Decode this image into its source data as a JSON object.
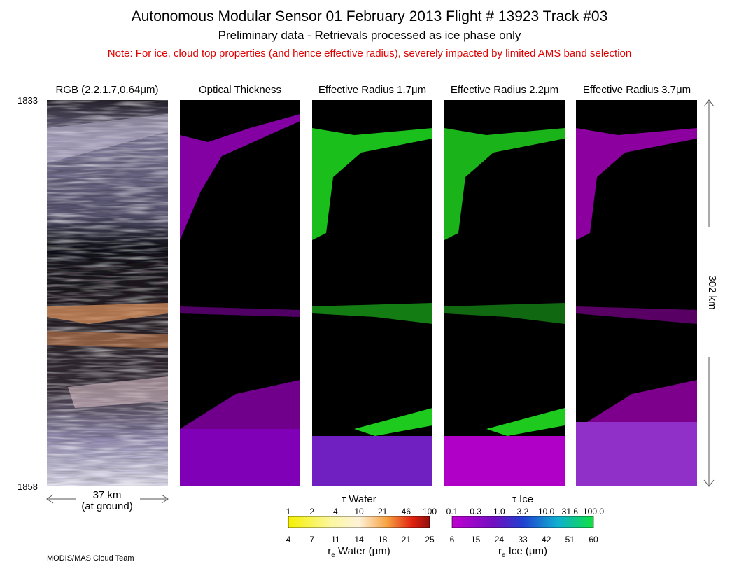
{
  "header": {
    "title": "Autonomous Modular Sensor  01 February 2013  Flight # 13923 Track #03",
    "subtitle": "Preliminary data - Retrievals processed as ice phase only",
    "note": "Note: For ice, cloud top properties (and hence effective radius), severely impacted by limited AMS band selection"
  },
  "panels": [
    {
      "title": "RGB (2.2,1.7,0.64μm)"
    },
    {
      "title": "Optical Thickness"
    },
    {
      "title": "Effective Radius 1.7μm"
    },
    {
      "title": "Effective Radius 2.2μm"
    },
    {
      "title": "Effective Radius 3.7μm"
    }
  ],
  "time_axis": {
    "start": "1833",
    "end": "1858"
  },
  "scale": {
    "width": "37 km",
    "width_note": "(at ground)",
    "length": "302 km"
  },
  "colorbars": {
    "water": {
      "top_label": "τ Water",
      "top_ticks": [
        "1",
        "2",
        "4",
        "10",
        "21",
        "46",
        "100"
      ],
      "bottom_ticks": [
        "4",
        "7",
        "11",
        "14",
        "18",
        "21",
        "25"
      ],
      "bottom_label": {
        "symbol": "r",
        "subscript": "e",
        "text": " Water (μm)"
      }
    },
    "ice": {
      "top_label": "τ Ice",
      "top_ticks": [
        "0.1",
        "0.3",
        "1.0",
        "3.2",
        "10.0",
        "31.6",
        "100.0"
      ],
      "bottom_ticks": [
        "6",
        "15",
        "24",
        "33",
        "42",
        "51",
        "60"
      ],
      "bottom_label": {
        "symbol": "r",
        "subscript": "e",
        "text": " Ice (μm)"
      }
    }
  },
  "footer": "MODIS/MAS Cloud Team"
}
